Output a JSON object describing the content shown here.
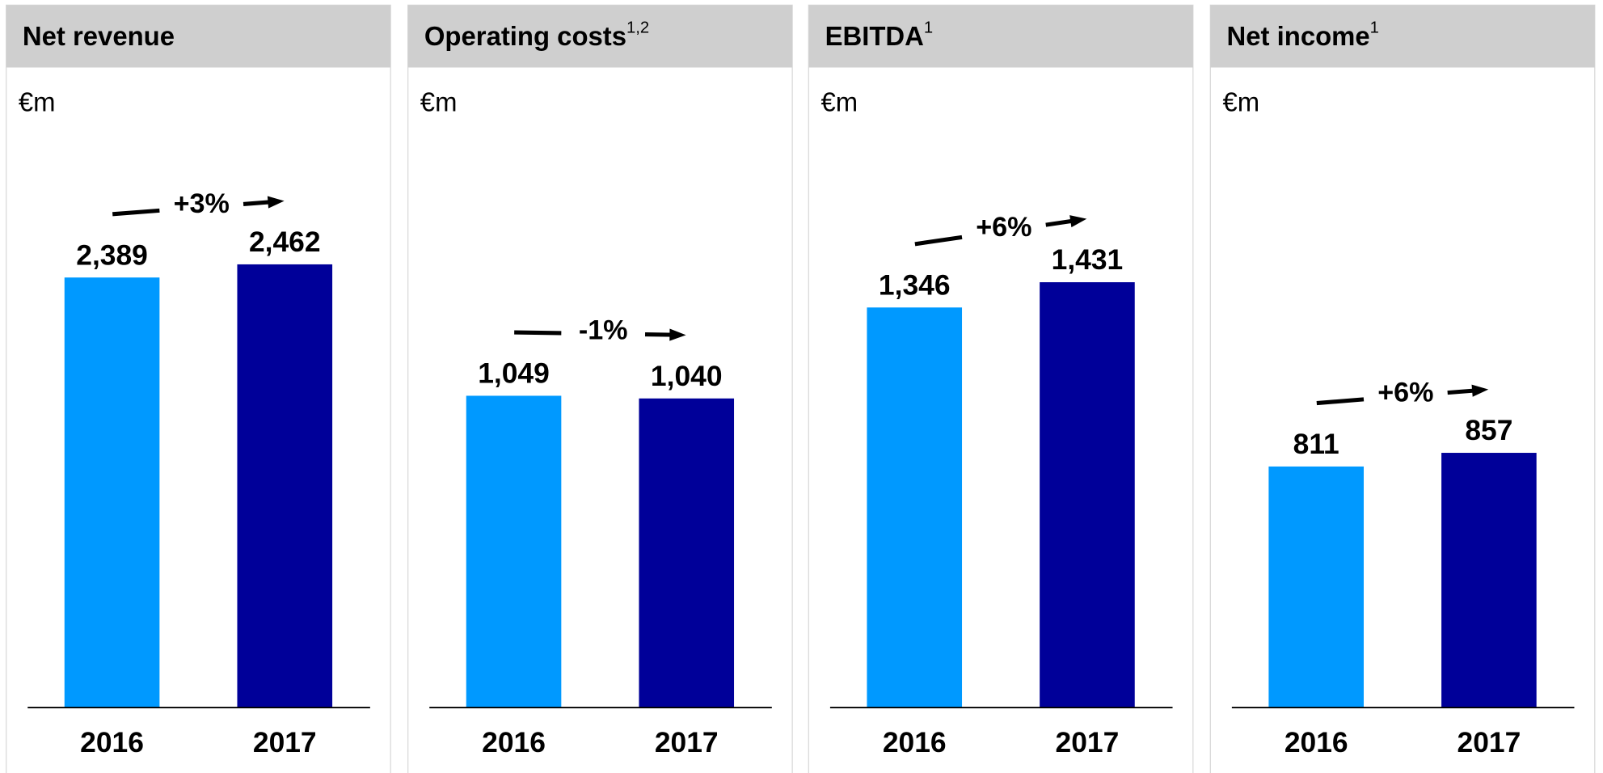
{
  "chart_data": [
    {
      "type": "bar",
      "title": "Net revenue",
      "title_note": null,
      "unit": "€m",
      "categories": [
        "2016",
        "2017"
      ],
      "values": [
        2389,
        2462
      ],
      "value_labels": [
        "2,389",
        "2,462"
      ],
      "colors": [
        "#0099ff",
        "#000099"
      ],
      "change": "+3%",
      "ylim": [
        0,
        2840
      ]
    },
    {
      "type": "bar",
      "title": "Operating costs",
      "title_note": "1,2",
      "unit": "€m",
      "categories": [
        "2016",
        "2017"
      ],
      "values": [
        1049,
        1040
      ],
      "value_labels": [
        "1,049",
        "1,040"
      ],
      "colors": [
        "#0099ff",
        "#000099"
      ],
      "change": "-1%",
      "ylim": [
        0,
        1720
      ]
    },
    {
      "type": "bar",
      "title": "EBITDA",
      "title_note": "1",
      "unit": "€m",
      "categories": [
        "2016",
        "2017"
      ],
      "values": [
        1346,
        1431
      ],
      "value_labels": [
        "1,346",
        "1,431"
      ],
      "colors": [
        "#0099ff",
        "#000099"
      ],
      "change": "+6%",
      "ylim": [
        0,
        1720
      ]
    },
    {
      "type": "bar",
      "title": "Net income",
      "title_note": "1",
      "unit": "€m",
      "categories": [
        "2016",
        "2017"
      ],
      "values": [
        811,
        857
      ],
      "value_labels": [
        "811",
        "857"
      ],
      "colors": [
        "#0099ff",
        "#000099"
      ],
      "change": "+6%",
      "ylim": [
        0,
        1720
      ]
    }
  ]
}
